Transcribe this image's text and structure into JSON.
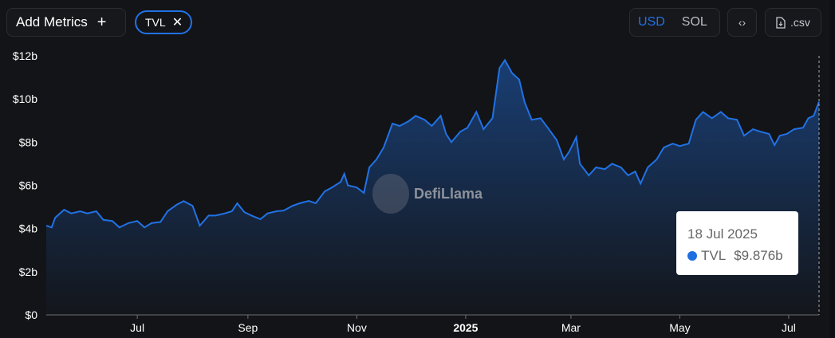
{
  "toolbar": {
    "add_metrics_label": "Add Metrics",
    "add_icon": "plus-icon",
    "metric_chip": "TVL",
    "chip_close_icon": "close-icon",
    "currency_options": [
      "USD",
      "SOL"
    ],
    "selected_currency": "USD",
    "embed_icon": "code-brackets-icon",
    "csv_label": ".csv",
    "csv_icon": "file-download-icon"
  },
  "watermark": "DefiLlama",
  "tooltip": {
    "date": "18 Jul 2025",
    "series": "TVL",
    "value": "$9.876b"
  },
  "colors": {
    "line": "#2172e5",
    "accent": "#2172e5",
    "background": "#131417"
  },
  "chart_data": {
    "type": "area",
    "xlabel": "",
    "ylabel": "",
    "x_ticks": [
      "Jul",
      "Sep",
      "Nov",
      "2025",
      "Mar",
      "May",
      "Jul"
    ],
    "x_tick_dates": [
      "2024-07-01",
      "2024-09-01",
      "2024-11-01",
      "2025-01-01",
      "2025-03-01",
      "2025-05-01",
      "2025-07-01"
    ],
    "y_ticks": [
      "$0",
      "$2b",
      "$4b",
      "$6b",
      "$8b",
      "$10b",
      "$12b"
    ],
    "ylim": [
      0,
      12
    ],
    "xlim": [
      "2024-05-11",
      "2025-07-18"
    ],
    "grid": false,
    "series": [
      {
        "name": "TVL",
        "unit": "billion USD",
        "points": [
          [
            "2024-05-11",
            4.13
          ],
          [
            "2024-05-14",
            4.05
          ],
          [
            "2024-05-16",
            4.5
          ],
          [
            "2024-05-21",
            4.87
          ],
          [
            "2024-05-25",
            4.7
          ],
          [
            "2024-05-30",
            4.8
          ],
          [
            "2024-06-03",
            4.7
          ],
          [
            "2024-06-08",
            4.8
          ],
          [
            "2024-06-12",
            4.4
          ],
          [
            "2024-06-17",
            4.35
          ],
          [
            "2024-06-21",
            4.05
          ],
          [
            "2024-06-26",
            4.25
          ],
          [
            "2024-07-01",
            4.35
          ],
          [
            "2024-07-05",
            4.05
          ],
          [
            "2024-07-09",
            4.25
          ],
          [
            "2024-07-14",
            4.3
          ],
          [
            "2024-07-18",
            4.8
          ],
          [
            "2024-07-23",
            5.1
          ],
          [
            "2024-07-27",
            5.27
          ],
          [
            "2024-08-01",
            5.05
          ],
          [
            "2024-08-05",
            4.13
          ],
          [
            "2024-08-10",
            4.6
          ],
          [
            "2024-08-14",
            4.6
          ],
          [
            "2024-08-19",
            4.7
          ],
          [
            "2024-08-23",
            4.8
          ],
          [
            "2024-08-26",
            5.17
          ],
          [
            "2024-08-30",
            4.76
          ],
          [
            "2024-09-03",
            4.6
          ],
          [
            "2024-09-08",
            4.43
          ],
          [
            "2024-09-12",
            4.7
          ],
          [
            "2024-09-17",
            4.8
          ],
          [
            "2024-09-21",
            4.83
          ],
          [
            "2024-09-26",
            5.05
          ],
          [
            "2024-09-30",
            5.17
          ],
          [
            "2024-10-05",
            5.28
          ],
          [
            "2024-10-09",
            5.17
          ],
          [
            "2024-10-14",
            5.72
          ],
          [
            "2024-10-18",
            5.9
          ],
          [
            "2024-10-23",
            6.16
          ],
          [
            "2024-10-25",
            6.53
          ],
          [
            "2024-10-27",
            6.0
          ],
          [
            "2024-11-01",
            5.9
          ],
          [
            "2024-11-05",
            5.65
          ],
          [
            "2024-11-08",
            6.83
          ],
          [
            "2024-11-12",
            7.2
          ],
          [
            "2024-11-16",
            7.75
          ],
          [
            "2024-11-21",
            8.86
          ],
          [
            "2024-11-25",
            8.75
          ],
          [
            "2024-11-30",
            8.97
          ],
          [
            "2024-12-04",
            9.22
          ],
          [
            "2024-12-09",
            9.04
          ],
          [
            "2024-12-13",
            8.75
          ],
          [
            "2024-12-18",
            9.22
          ],
          [
            "2024-12-21",
            8.38
          ],
          [
            "2024-12-24",
            8.0
          ],
          [
            "2024-12-29",
            8.49
          ],
          [
            "2025-01-02",
            8.67
          ],
          [
            "2025-01-07",
            9.4
          ],
          [
            "2025-01-11",
            8.6
          ],
          [
            "2025-01-16",
            9.11
          ],
          [
            "2025-01-20",
            11.44
          ],
          [
            "2025-01-23",
            11.8
          ],
          [
            "2025-01-27",
            11.2
          ],
          [
            "2025-01-31",
            10.9
          ],
          [
            "2025-02-03",
            9.85
          ],
          [
            "2025-02-07",
            9.04
          ],
          [
            "2025-02-12",
            9.11
          ],
          [
            "2025-02-16",
            8.67
          ],
          [
            "2025-02-21",
            8.1
          ],
          [
            "2025-02-25",
            7.2
          ],
          [
            "2025-02-28",
            7.56
          ],
          [
            "2025-03-04",
            8.23
          ],
          [
            "2025-03-06",
            7.0
          ],
          [
            "2025-03-11",
            6.46
          ],
          [
            "2025-03-15",
            6.83
          ],
          [
            "2025-03-20",
            6.75
          ],
          [
            "2025-03-24",
            7.0
          ],
          [
            "2025-03-29",
            6.83
          ],
          [
            "2025-04-02",
            6.46
          ],
          [
            "2025-04-06",
            6.64
          ],
          [
            "2025-04-09",
            6.08
          ],
          [
            "2025-04-13",
            6.83
          ],
          [
            "2025-04-18",
            7.2
          ],
          [
            "2025-04-22",
            7.75
          ],
          [
            "2025-04-27",
            7.93
          ],
          [
            "2025-05-01",
            7.82
          ],
          [
            "2025-05-06",
            7.93
          ],
          [
            "2025-05-10",
            9.04
          ],
          [
            "2025-05-14",
            9.4
          ],
          [
            "2025-05-19",
            9.11
          ],
          [
            "2025-05-24",
            9.4
          ],
          [
            "2025-05-28",
            9.11
          ],
          [
            "2025-06-02",
            9.04
          ],
          [
            "2025-06-06",
            8.3
          ],
          [
            "2025-06-11",
            8.6
          ],
          [
            "2025-06-15",
            8.49
          ],
          [
            "2025-06-20",
            8.38
          ],
          [
            "2025-06-23",
            7.86
          ],
          [
            "2025-06-26",
            8.3
          ],
          [
            "2025-06-30",
            8.38
          ],
          [
            "2025-07-04",
            8.6
          ],
          [
            "2025-07-09",
            8.67
          ],
          [
            "2025-07-12",
            9.11
          ],
          [
            "2025-07-15",
            9.22
          ],
          [
            "2025-07-18",
            9.876
          ]
        ]
      }
    ]
  }
}
